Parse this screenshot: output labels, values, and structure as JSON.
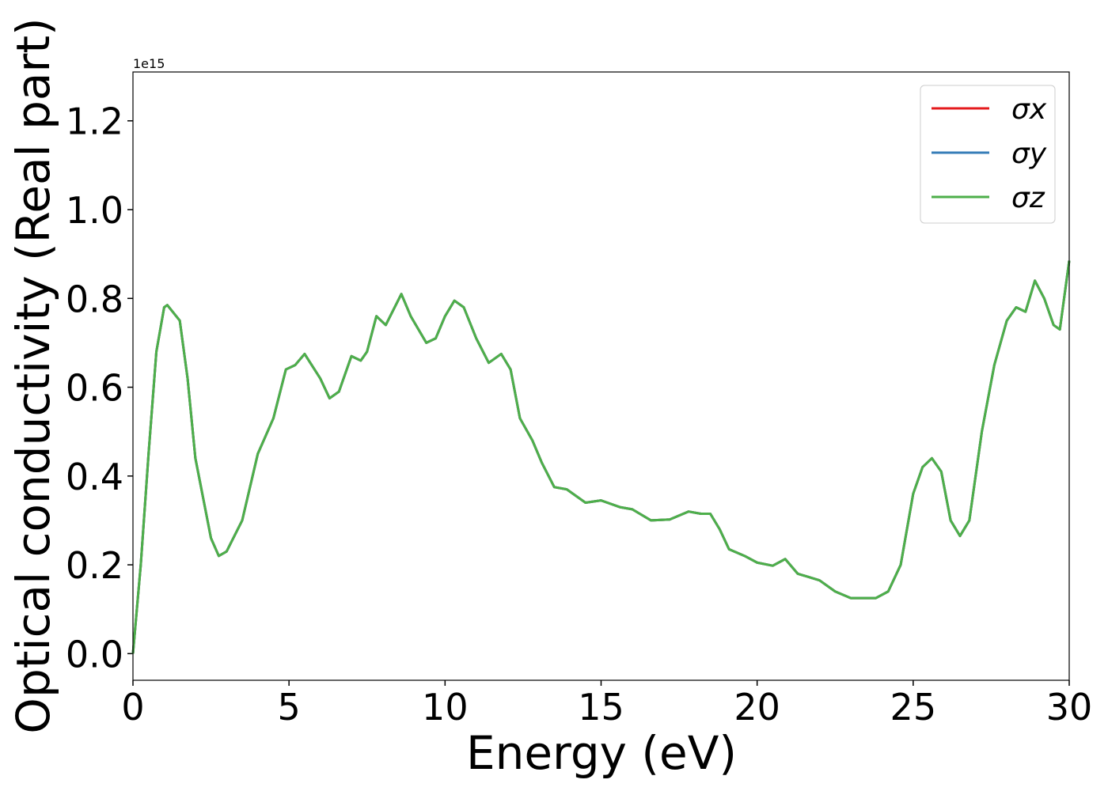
{
  "chart_data": {
    "type": "line",
    "offset_text": "1e15",
    "xlabel": "Energy (eV)",
    "ylabel": "Optical conductivity (Real part)",
    "x": [
      0,
      0.25,
      0.5,
      0.75,
      1.0,
      1.1,
      1.5,
      1.75,
      2.0,
      2.25,
      2.5,
      2.75,
      3.0,
      3.5,
      4.0,
      4.5,
      4.9,
      5.2,
      5.5,
      6.0,
      6.3,
      6.6,
      7.0,
      7.3,
      7.5,
      7.8,
      8.1,
      8.6,
      8.9,
      9.4,
      9.7,
      10.0,
      10.3,
      10.6,
      11.0,
      11.4,
      11.6,
      11.8,
      12.1,
      12.4,
      12.8,
      13.1,
      13.5,
      13.9,
      14.5,
      15.0,
      15.6,
      16.0,
      16.6,
      17.2,
      17.8,
      18.2,
      18.5,
      18.8,
      19.1,
      19.6,
      20.0,
      20.5,
      20.9,
      21.3,
      22.0,
      22.5,
      23.0,
      23.8,
      24.2,
      24.6,
      25.0,
      25.3,
      25.6,
      25.9,
      26.2,
      26.5,
      26.8,
      27.2,
      27.6,
      28.0,
      28.3,
      28.6,
      28.9,
      29.2,
      29.5,
      29.7,
      30.0
    ],
    "series": [
      {
        "name": "σx",
        "color": "#e41a1c",
        "values": [
          0,
          0.2,
          0.45,
          0.68,
          0.78,
          0.785,
          0.75,
          0.62,
          0.44,
          0.35,
          0.26,
          0.22,
          0.23,
          0.3,
          0.45,
          0.53,
          0.64,
          0.65,
          0.675,
          0.62,
          0.575,
          0.59,
          0.67,
          0.66,
          0.68,
          0.76,
          0.74,
          0.81,
          0.76,
          0.7,
          0.71,
          0.76,
          0.795,
          0.78,
          0.71,
          0.655,
          0.665,
          0.675,
          0.64,
          0.53,
          0.48,
          0.43,
          0.375,
          0.37,
          0.34,
          0.345,
          0.33,
          0.325,
          0.3,
          0.302,
          0.32,
          0.315,
          0.315,
          0.28,
          0.235,
          0.22,
          0.205,
          0.198,
          0.213,
          0.18,
          0.165,
          0.14,
          0.125,
          0.125,
          0.14,
          0.2,
          0.36,
          0.42,
          0.44,
          0.41,
          0.3,
          0.265,
          0.3,
          0.5,
          0.65,
          0.75,
          0.78,
          0.77,
          0.84,
          0.8,
          0.74,
          0.73,
          0.885
        ]
      },
      {
        "name": "σy",
        "color": "#377eb8",
        "values": [
          0,
          0.2,
          0.45,
          0.68,
          0.78,
          0.785,
          0.75,
          0.62,
          0.44,
          0.35,
          0.26,
          0.22,
          0.23,
          0.3,
          0.45,
          0.53,
          0.64,
          0.65,
          0.675,
          0.62,
          0.575,
          0.59,
          0.67,
          0.66,
          0.68,
          0.76,
          0.74,
          0.81,
          0.76,
          0.7,
          0.71,
          0.76,
          0.795,
          0.78,
          0.71,
          0.655,
          0.665,
          0.675,
          0.64,
          0.53,
          0.48,
          0.43,
          0.375,
          0.37,
          0.34,
          0.345,
          0.33,
          0.325,
          0.3,
          0.302,
          0.32,
          0.315,
          0.315,
          0.28,
          0.235,
          0.22,
          0.205,
          0.198,
          0.213,
          0.18,
          0.165,
          0.14,
          0.125,
          0.125,
          0.14,
          0.2,
          0.36,
          0.42,
          0.44,
          0.41,
          0.3,
          0.265,
          0.3,
          0.5,
          0.65,
          0.75,
          0.78,
          0.77,
          0.84,
          0.8,
          0.74,
          0.73,
          0.885
        ]
      },
      {
        "name": "σz",
        "color": "#4daf4a",
        "values": [
          0,
          0.2,
          0.45,
          0.68,
          0.78,
          0.785,
          0.75,
          0.62,
          0.44,
          0.35,
          0.26,
          0.22,
          0.23,
          0.3,
          0.45,
          0.53,
          0.64,
          0.65,
          0.675,
          0.62,
          0.575,
          0.59,
          0.67,
          0.66,
          0.68,
          0.76,
          0.74,
          0.81,
          0.76,
          0.7,
          0.71,
          0.76,
          0.795,
          0.78,
          0.71,
          0.655,
          0.665,
          0.675,
          0.64,
          0.53,
          0.48,
          0.43,
          0.375,
          0.37,
          0.34,
          0.345,
          0.33,
          0.325,
          0.3,
          0.302,
          0.32,
          0.315,
          0.315,
          0.28,
          0.235,
          0.22,
          0.205,
          0.198,
          0.213,
          0.18,
          0.165,
          0.14,
          0.125,
          0.125,
          0.14,
          0.2,
          0.36,
          0.42,
          0.44,
          0.41,
          0.3,
          0.265,
          0.3,
          0.5,
          0.65,
          0.75,
          0.78,
          0.77,
          0.84,
          0.8,
          0.74,
          0.73,
          0.885
        ]
      }
    ],
    "xlim": [
      0,
      30
    ],
    "xticks": [
      0,
      5,
      10,
      15,
      20,
      25,
      30
    ],
    "ylim": [
      -0.06,
      1.31
    ],
    "yticks": [
      {
        "value": 0,
        "label": "0.0"
      },
      0.2,
      0.4,
      0.6,
      0.8,
      {
        "value": 1,
        "label": "1.0"
      },
      1.2
    ],
    "legend": "upper right",
    "grid": false
  }
}
